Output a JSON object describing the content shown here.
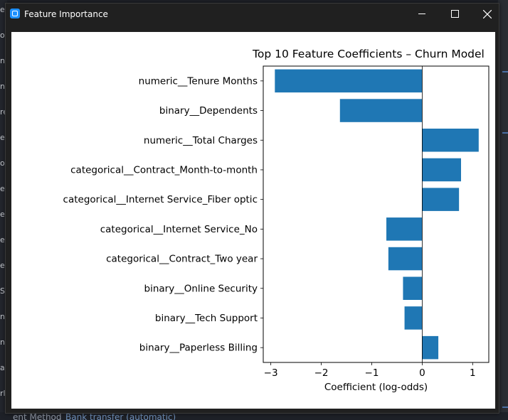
{
  "window": {
    "title": "Feature Importance",
    "buttons": {
      "minimize": "minimize",
      "maximize": "maximize",
      "close": "close"
    }
  },
  "background": {
    "left_fragments": [
      "e",
      "o",
      "n",
      "n",
      "re",
      "e",
      "o",
      "e",
      "e",
      "e",
      "e",
      "S",
      "n",
      "n",
      "a",
      "rl"
    ],
    "bottom_label": "ent Method",
    "bottom_value": "Bank transfer (automatic)"
  },
  "chart_data": {
    "type": "bar",
    "orientation": "horizontal",
    "title": "Top 10 Feature Coefficients – Churn Model",
    "xlabel": "Coefficient (log-odds)",
    "ylabel": "",
    "xlim": [
      -3.15,
      1.32
    ],
    "xticks": [
      -3,
      -2,
      -1,
      0,
      1
    ],
    "xtick_labels": [
      "−3",
      "−2",
      "−1",
      "0",
      "1"
    ],
    "zero_line": true,
    "bar_color": "#1f77b4",
    "categories": [
      "numeric__Tenure Months",
      "binary__Dependents",
      "numeric__Total Charges",
      "categorical__Contract_Month-to-month",
      "categorical__Internet Service_Fiber optic",
      "categorical__Internet Service_No",
      "categorical__Contract_Two year",
      "binary__Online Security",
      "binary__Tech Support",
      "binary__Paperless Billing"
    ],
    "values": [
      -2.92,
      -1.63,
      1.12,
      0.77,
      0.73,
      -0.71,
      -0.67,
      -0.38,
      -0.35,
      0.32
    ]
  }
}
